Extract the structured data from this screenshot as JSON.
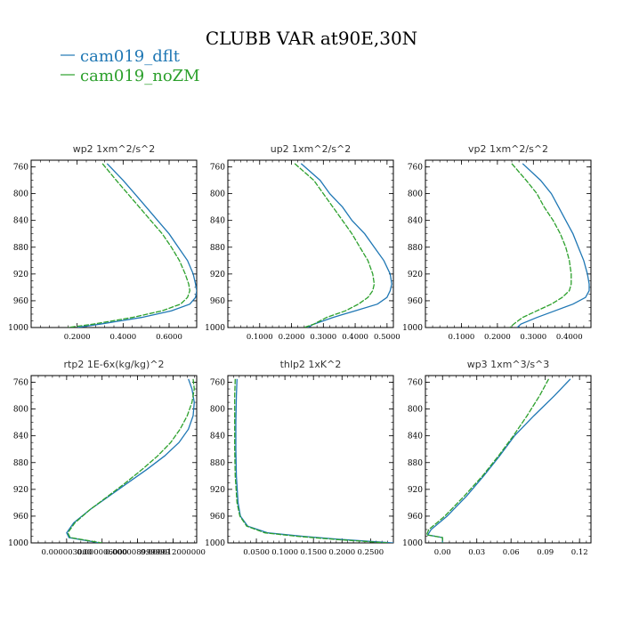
{
  "title": "CLUBB VAR at90E,30N",
  "legend": [
    {
      "name": "cam019_dflt",
      "color": "#1f77b4"
    },
    {
      "name": "cam019_noZM",
      "color": "#2ca02c"
    }
  ],
  "chart_data": [
    {
      "type": "line",
      "title": "wp2   1xm^2/s^2",
      "xlim": [
        0.0,
        0.72
      ],
      "ylim": [
        1000,
        750
      ],
      "xticks": [
        0.2,
        0.4,
        0.6
      ],
      "xtick_labels": [
        "0.2000",
        "0.4000",
        "0.6000"
      ],
      "yticks": [
        760,
        800,
        840,
        880,
        920,
        960,
        1000
      ],
      "ytick_labels": [
        "760",
        "800",
        "840",
        "880",
        "920",
        "960",
        "1000"
      ],
      "series": [
        {
          "name": "cam019_dflt",
          "y": [
            755,
            780,
            800,
            820,
            840,
            860,
            880,
            900,
            920,
            935,
            945,
            955,
            965,
            975,
            985,
            995,
            1000
          ],
          "x": [
            0.33,
            0.4,
            0.45,
            0.5,
            0.55,
            0.6,
            0.64,
            0.68,
            0.705,
            0.715,
            0.72,
            0.715,
            0.69,
            0.61,
            0.48,
            0.3,
            0.2
          ]
        },
        {
          "name": "cam019_noZM",
          "y": [
            755,
            780,
            800,
            820,
            840,
            860,
            880,
            900,
            920,
            935,
            945,
            955,
            965,
            975,
            985,
            995,
            1000
          ],
          "x": [
            0.31,
            0.37,
            0.42,
            0.47,
            0.52,
            0.57,
            0.61,
            0.645,
            0.67,
            0.685,
            0.69,
            0.68,
            0.65,
            0.57,
            0.44,
            0.27,
            0.16
          ]
        }
      ]
    },
    {
      "type": "line",
      "title": "up2   1xm^2/s^2",
      "xlim": [
        0.0,
        0.52
      ],
      "ylim": [
        1000,
        750
      ],
      "xticks": [
        0.1,
        0.2,
        0.3,
        0.4,
        0.5
      ],
      "xtick_labels": [
        "0.1000",
        "0.2000",
        "0.3000",
        "0.4000",
        "0.5000"
      ],
      "yticks": [
        760,
        800,
        840,
        880,
        920,
        960,
        1000
      ],
      "ytick_labels": [
        "760",
        "800",
        "840",
        "880",
        "920",
        "960",
        "1000"
      ],
      "series": [
        {
          "name": "cam019_dflt",
          "y": [
            755,
            780,
            800,
            820,
            840,
            860,
            880,
            900,
            920,
            935,
            945,
            955,
            965,
            975,
            985,
            995,
            1000
          ],
          "x": [
            0.23,
            0.29,
            0.32,
            0.36,
            0.39,
            0.43,
            0.46,
            0.49,
            0.51,
            0.515,
            0.51,
            0.5,
            0.47,
            0.4,
            0.33,
            0.27,
            0.25
          ]
        },
        {
          "name": "cam019_noZM",
          "y": [
            755,
            780,
            800,
            820,
            840,
            860,
            880,
            900,
            920,
            935,
            945,
            955,
            965,
            975,
            985,
            995,
            1000
          ],
          "x": [
            0.21,
            0.27,
            0.3,
            0.33,
            0.36,
            0.39,
            0.415,
            0.44,
            0.455,
            0.46,
            0.455,
            0.44,
            0.41,
            0.37,
            0.31,
            0.27,
            0.24
          ]
        }
      ]
    },
    {
      "type": "line",
      "title": "vp2   1xm^2/s^2",
      "xlim": [
        0.0,
        0.46
      ],
      "ylim": [
        1000,
        750
      ],
      "xticks": [
        0.1,
        0.2,
        0.3,
        0.4
      ],
      "xtick_labels": [
        "0.1000",
        "0.2000",
        "0.3000",
        "0.4000"
      ],
      "yticks": [
        760,
        800,
        840,
        880,
        920,
        960,
        1000
      ],
      "ytick_labels": [
        "760",
        "800",
        "840",
        "880",
        "920",
        "960",
        "1000"
      ],
      "series": [
        {
          "name": "cam019_dflt",
          "y": [
            755,
            780,
            800,
            820,
            840,
            860,
            880,
            900,
            920,
            935,
            945,
            955,
            965,
            975,
            985,
            995,
            1000
          ],
          "x": [
            0.27,
            0.32,
            0.35,
            0.37,
            0.39,
            0.41,
            0.425,
            0.44,
            0.45,
            0.455,
            0.455,
            0.445,
            0.41,
            0.36,
            0.31,
            0.265,
            0.255
          ]
        },
        {
          "name": "cam019_noZM",
          "y": [
            755,
            780,
            800,
            820,
            840,
            860,
            880,
            900,
            920,
            935,
            945,
            955,
            965,
            975,
            985,
            995,
            1000
          ],
          "x": [
            0.24,
            0.28,
            0.31,
            0.33,
            0.355,
            0.375,
            0.39,
            0.4,
            0.405,
            0.405,
            0.4,
            0.38,
            0.35,
            0.31,
            0.27,
            0.245,
            0.235
          ]
        }
      ]
    },
    {
      "type": "line",
      "title": "rtp2   1E-6x(kg/kg)^2",
      "xlim": [
        0.0,
        1.4e-05
      ],
      "ylim": [
        1000,
        750
      ],
      "xticks": [
        3e-06,
        6e-06,
        9e-06,
        1.2e-05
      ],
      "xtick_labels": [
        "0.000003000",
        "0.000006000",
        "0.000008999999",
        "0.000012000000"
      ],
      "yticks": [
        760,
        800,
        840,
        880,
        920,
        960,
        1000
      ],
      "ytick_labels": [
        "760",
        "800",
        "840",
        "880",
        "920",
        "960",
        "1000"
      ],
      "series": [
        {
          "name": "cam019_dflt",
          "y": [
            755,
            770,
            790,
            810,
            830,
            850,
            870,
            890,
            910,
            930,
            950,
            970,
            985,
            992,
            1000
          ],
          "x": [
            1.33e-05,
            1.36e-05,
            1.38e-05,
            1.37e-05,
            1.33e-05,
            1.25e-05,
            1.13e-05,
            9.8e-06,
            8.2e-06,
            6.6e-06,
            5e-06,
            3.6e-06,
            3e-06,
            3.2e-06,
            5.8e-06
          ]
        },
        {
          "name": "cam019_noZM",
          "y": [
            755,
            770,
            790,
            810,
            830,
            850,
            870,
            890,
            910,
            930,
            950,
            970,
            985,
            992,
            1000
          ],
          "x": [
            1.37e-05,
            1.38e-05,
            1.36e-05,
            1.32e-05,
            1.26e-05,
            1.18e-05,
            1.07e-05,
            9.4e-06,
            8e-06,
            6.5e-06,
            5e-06,
            3.7e-06,
            3.1e-06,
            3.3e-06,
            6e-06
          ]
        }
      ]
    },
    {
      "type": "line",
      "title": "thlp2   1xK^2",
      "xlim": [
        0.0,
        0.29
      ],
      "ylim": [
        1000,
        750
      ],
      "xticks": [
        0.05,
        0.1,
        0.15,
        0.2,
        0.25
      ],
      "xtick_labels": [
        "0.0500",
        "0.1000",
        "0.1500",
        "0.2000",
        "0.2500"
      ],
      "yticks": [
        760,
        800,
        840,
        880,
        920,
        960,
        1000
      ],
      "ytick_labels": [
        "760",
        "800",
        "840",
        "880",
        "920",
        "960",
        "1000"
      ],
      "series": [
        {
          "name": "cam019_dflt",
          "y": [
            755,
            780,
            820,
            860,
            900,
            940,
            960,
            975,
            985,
            990,
            995,
            1000
          ],
          "x": [
            0.016,
            0.015,
            0.014,
            0.014,
            0.015,
            0.018,
            0.022,
            0.035,
            0.07,
            0.13,
            0.2,
            0.29
          ]
        },
        {
          "name": "cam019_noZM",
          "y": [
            755,
            780,
            820,
            860,
            900,
            940,
            960,
            975,
            985,
            990,
            995,
            1000
          ],
          "x": [
            0.013,
            0.012,
            0.012,
            0.012,
            0.013,
            0.016,
            0.021,
            0.033,
            0.065,
            0.12,
            0.19,
            0.28
          ]
        }
      ]
    },
    {
      "type": "line",
      "title": "wp3   1xm^3/s^3",
      "xlim": [
        -0.015,
        0.13
      ],
      "ylim": [
        1000,
        750
      ],
      "xticks": [
        0.0,
        0.03,
        0.06,
        0.09,
        0.12
      ],
      "xtick_labels": [
        "0.00",
        "0.03",
        "0.06",
        "0.09",
        "0.12"
      ],
      "yticks": [
        760,
        800,
        840,
        880,
        920,
        960,
        1000
      ],
      "ytick_labels": [
        "760",
        "800",
        "840",
        "880",
        "920",
        "960",
        "1000"
      ],
      "series": [
        {
          "name": "cam019_dflt",
          "y": [
            755,
            780,
            810,
            840,
            870,
            900,
            930,
            960,
            980,
            988,
            992,
            1000
          ],
          "x": [
            0.112,
            0.098,
            0.08,
            0.063,
            0.05,
            0.036,
            0.021,
            0.004,
            -0.01,
            -0.013,
            0.0,
            0.0
          ]
        },
        {
          "name": "cam019_noZM",
          "y": [
            755,
            780,
            810,
            840,
            870,
            900,
            930,
            960,
            980,
            988,
            992,
            1000
          ],
          "x": [
            0.093,
            0.085,
            0.074,
            0.062,
            0.049,
            0.035,
            0.019,
            0.002,
            -0.012,
            -0.014,
            0.0,
            0.0
          ]
        }
      ]
    }
  ]
}
